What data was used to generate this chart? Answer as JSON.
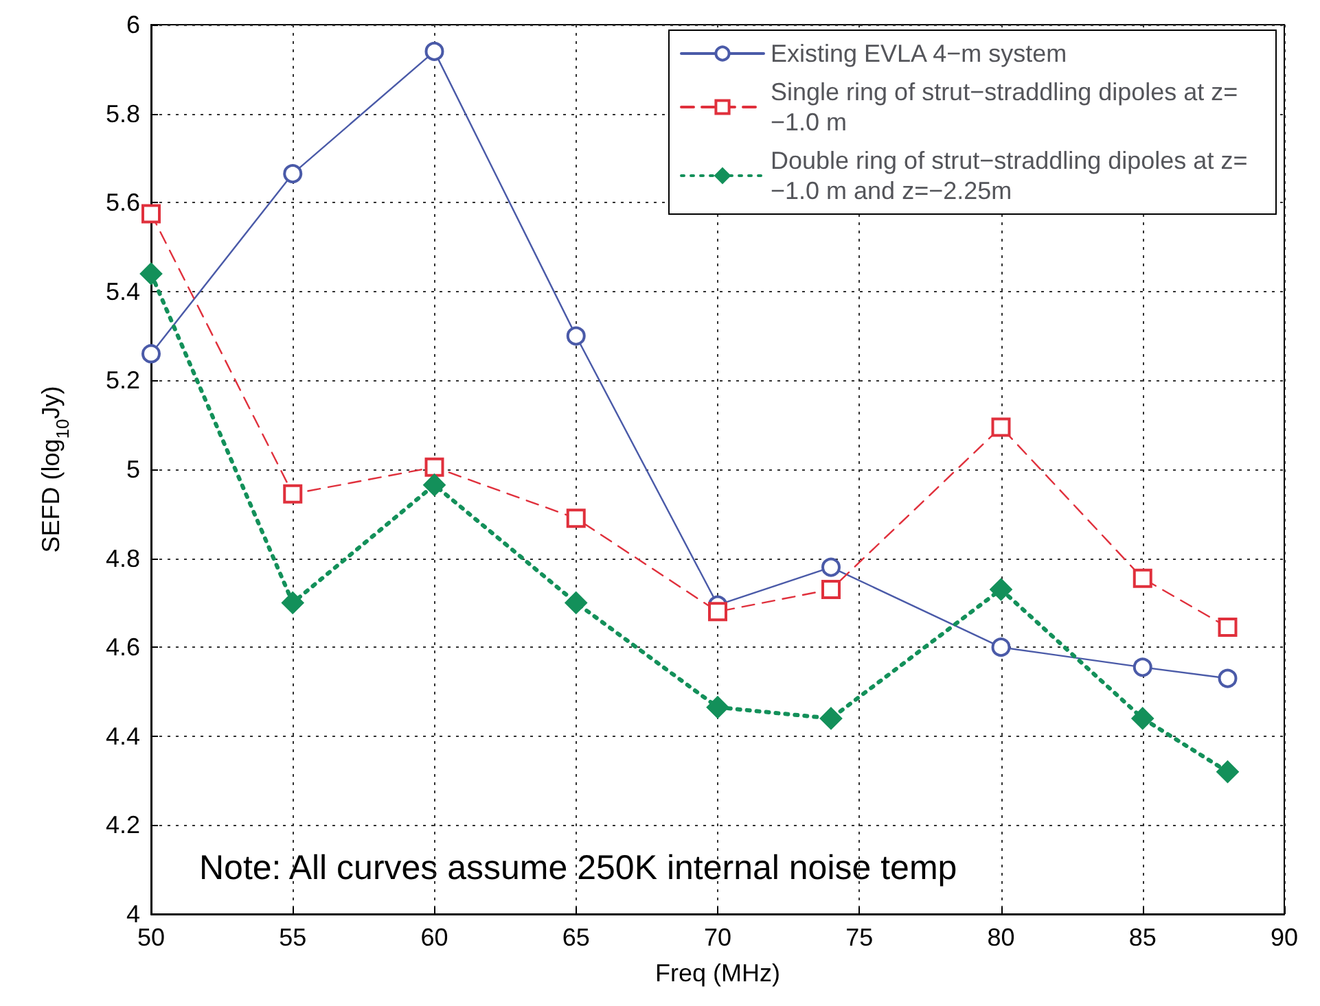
{
  "chart_data": {
    "type": "line",
    "xlabel": "Freq (MHz)",
    "ylabel": "SEFD (log$_{10}$Jy)",
    "x": [
      50,
      55,
      60,
      65,
      70,
      74,
      80,
      85,
      88
    ],
    "series": [
      {
        "name": "Existing EVLA 4−m system",
        "color": "#4a5aa8",
        "marker": "circle",
        "line_style": "solid",
        "values": [
          5.26,
          5.665,
          5.94,
          5.3,
          4.695,
          4.78,
          4.6,
          4.555,
          4.53
        ]
      },
      {
        "name": "Single ring of strut−straddling dipoles at z=−1.0 m",
        "color": "#e0303c",
        "marker": "square",
        "line_style": "dashed",
        "values": [
          5.575,
          4.945,
          5.005,
          4.89,
          4.68,
          4.73,
          5.095,
          4.755,
          4.645
        ]
      },
      {
        "name": "Double ring of strut−straddling dipoles at z=−1.0 m and z=−2.25m",
        "color": "#13905a",
        "marker": "diamond",
        "line_style": "dotted",
        "values": [
          5.44,
          4.7,
          4.965,
          4.7,
          4.465,
          4.44,
          4.73,
          4.44,
          4.32
        ]
      }
    ],
    "xlim": [
      50,
      90
    ],
    "xticks": [
      50,
      55,
      60,
      65,
      70,
      75,
      80,
      85,
      90
    ],
    "ylim": [
      4,
      6
    ],
    "yticks": [
      4,
      4.2,
      4.4,
      4.6,
      4.8,
      5,
      5.2,
      5.4,
      5.6,
      5.8,
      6
    ],
    "grid": true,
    "legend": "top right",
    "annotations": [
      "Note: All curves assume 250K internal noise temp"
    ]
  }
}
